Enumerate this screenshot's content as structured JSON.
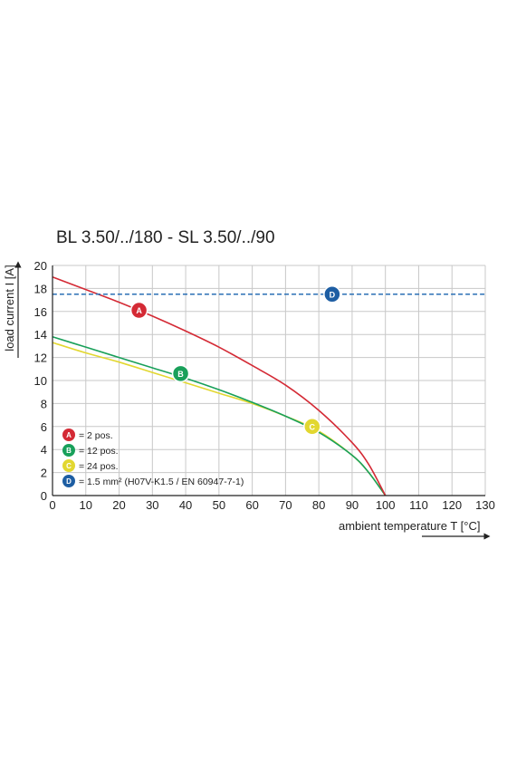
{
  "chart_data": {
    "type": "line",
    "title": "BL 3.50/../180 - SL 3.50/../90",
    "xlabel": "ambient temperature T [°C]",
    "ylabel": "load current I [A]",
    "xlim": [
      0,
      130
    ],
    "ylim": [
      0,
      20
    ],
    "xticks": [
      "0",
      "10",
      "20",
      "30",
      "40",
      "50",
      "60",
      "70",
      "80",
      "90",
      "100",
      "110",
      "120",
      "130"
    ],
    "yticks": [
      "0",
      "2",
      "4",
      "6",
      "8",
      "10",
      "12",
      "14",
      "16",
      "18",
      "20"
    ],
    "grid": true,
    "legend_position": "bottom-left",
    "series": [
      {
        "name": "= 2 pos.",
        "marker_letter": "A",
        "color": "#d42a35",
        "x": [
          0,
          10,
          20,
          30,
          40,
          50,
          60,
          70,
          80,
          90,
          95,
          100
        ],
        "y": [
          19.0,
          17.9,
          16.8,
          15.6,
          14.3,
          12.9,
          11.3,
          9.6,
          7.4,
          4.6,
          2.7,
          0.0
        ],
        "marker_at": [
          26,
          16.1
        ]
      },
      {
        "name": "= 12 pos.",
        "marker_letter": "B",
        "color": "#19a05a",
        "x": [
          0,
          10,
          20,
          30,
          40,
          50,
          60,
          70,
          80,
          90,
          95,
          100
        ],
        "y": [
          13.8,
          12.9,
          12.0,
          11.1,
          10.2,
          9.2,
          8.1,
          6.9,
          5.5,
          3.5,
          2.0,
          0.0
        ],
        "marker_at": [
          38.5,
          10.6
        ]
      },
      {
        "name": "= 24 pos.",
        "marker_letter": "C",
        "color": "#e2d730",
        "x": [
          0,
          10,
          20,
          30,
          40,
          50,
          60,
          70,
          80,
          90,
          95,
          100
        ],
        "y": [
          13.3,
          12.4,
          11.6,
          10.7,
          9.8,
          8.9,
          8.0,
          6.9,
          5.6,
          3.5,
          2.0,
          0.0
        ],
        "marker_at": [
          78,
          6.0
        ]
      },
      {
        "name": "= 1.5 mm² (H07V-K1.5 / EN 60947-7-1)",
        "marker_letter": "D",
        "color": "#2a6fb5",
        "style": "dashed",
        "x": [
          0,
          130
        ],
        "y": [
          17.5,
          17.5
        ],
        "marker_at": [
          84,
          17.5
        ]
      }
    ],
    "colors": {
      "grid": "#c8c8c8",
      "axis": "#222222",
      "marker_D": "#1e5ea3"
    }
  }
}
